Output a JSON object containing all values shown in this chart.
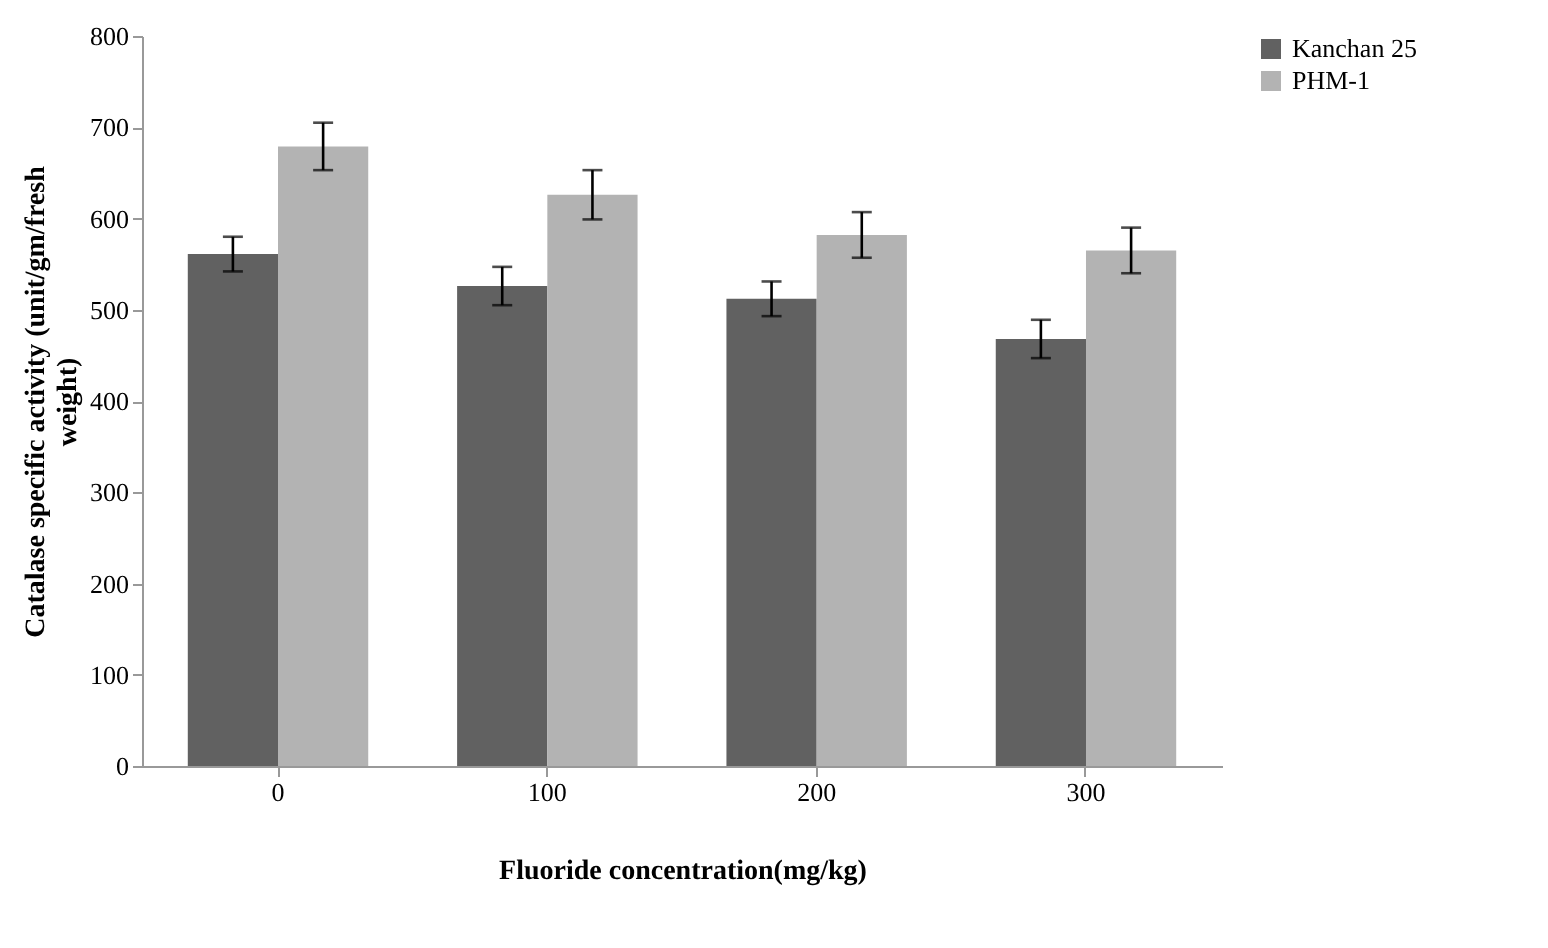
{
  "chart_data": {
    "type": "bar",
    "xlabel": "Fluoride concentration(mg/kg)",
    "ylabel": "Catalase specific activity (unit/gm/fresh weight)",
    "categories": [
      "0",
      "100",
      "200",
      "300"
    ],
    "series": [
      {
        "name": "Kanchan 25",
        "color": "#616161",
        "values": [
          561,
          526,
          512,
          468
        ],
        "errors": [
          19,
          21,
          19,
          21
        ]
      },
      {
        "name": "PHM-1",
        "color": "#b3b3b3",
        "values": [
          679,
          626,
          582,
          565
        ],
        "errors": [
          26,
          27,
          25,
          25
        ]
      }
    ],
    "ylim": [
      0,
      800
    ],
    "yticks": [
      0,
      100,
      200,
      300,
      400,
      500,
      600,
      700,
      800
    ],
    "grid": false,
    "legend": "right"
  }
}
